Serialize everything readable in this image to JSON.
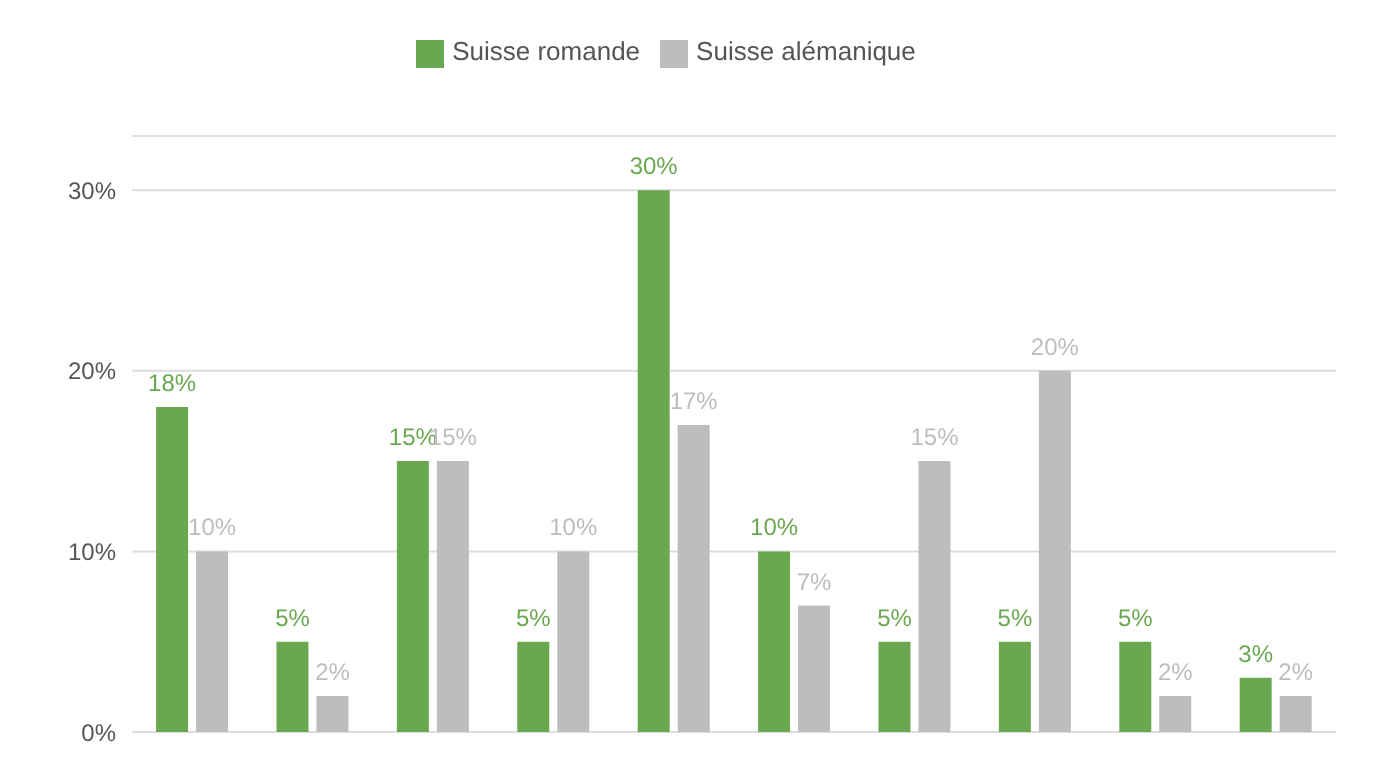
{
  "chart_data": {
    "type": "bar",
    "categories": [
      null,
      null,
      null,
      null,
      null,
      null,
      null,
      null,
      null,
      null
    ],
    "series": [
      {
        "name": "Suisse romande",
        "color": "#6aa84f",
        "values": [
          18,
          5,
          15,
          5,
          30,
          10,
          5,
          5,
          5,
          3
        ],
        "value_labels": [
          "18%",
          "5%",
          "15%",
          "5%",
          "30%",
          "10%",
          "5%",
          "5%",
          "5%",
          "3%"
        ]
      },
      {
        "name": "Suisse alémanique",
        "color": "#bdbdbd",
        "values": [
          10,
          2,
          15,
          10,
          17,
          7,
          15,
          20,
          2,
          2
        ],
        "value_labels": [
          "10%",
          "2%",
          "15%",
          "10%",
          "17%",
          "7%",
          "15%",
          "20%",
          "2%",
          "2%"
        ]
      }
    ],
    "ylim": [
      0,
      33
    ],
    "yticks": [
      {
        "value": 0,
        "label": "0%"
      },
      {
        "value": 10,
        "label": "10%"
      },
      {
        "value": 20,
        "label": "20%"
      },
      {
        "value": 30,
        "label": "30%"
      }
    ],
    "grid": "y",
    "legend": "top"
  }
}
